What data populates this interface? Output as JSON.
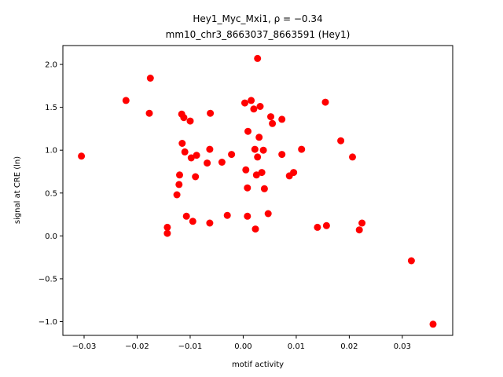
{
  "chart_data": {
    "type": "scatter",
    "title_line1": "Hey1_Myc_Mxi1, ρ = −0.34",
    "title_line2": "mm10_chr3_8663037_8663591 (Hey1)",
    "xlabel": "motif activity",
    "ylabel": "signal at CRE (ln)",
    "xlim": [
      -0.034,
      0.0395
    ],
    "ylim": [
      -1.16,
      2.22
    ],
    "xticks": [
      -0.03,
      -0.02,
      -0.01,
      0.0,
      0.01,
      0.02,
      0.03
    ],
    "xtick_labels": [
      "−0.03",
      "−0.02",
      "−0.01",
      "0.00",
      "0.01",
      "0.02",
      "0.03"
    ],
    "yticks": [
      -1.0,
      -0.5,
      0.0,
      0.5,
      1.0,
      1.5,
      2.0
    ],
    "ytick_labels": [
      "−1.0",
      "−0.5",
      "0.0",
      "0.5",
      "1.0",
      "1.5",
      "2.0"
    ],
    "marker_color": "#ff0000",
    "points": [
      [
        -0.0305,
        0.93
      ],
      [
        -0.0221,
        1.58
      ],
      [
        -0.0175,
        1.84
      ],
      [
        -0.0177,
        1.43
      ],
      [
        -0.0143,
        0.1
      ],
      [
        -0.0143,
        0.03
      ],
      [
        -0.0125,
        0.48
      ],
      [
        -0.0121,
        0.6
      ],
      [
        -0.012,
        0.71
      ],
      [
        -0.0116,
        1.42
      ],
      [
        -0.0112,
        1.38
      ],
      [
        -0.0115,
        1.08
      ],
      [
        -0.011,
        0.98
      ],
      [
        -0.0107,
        0.23
      ],
      [
        -0.01,
        1.34
      ],
      [
        -0.0098,
        0.91
      ],
      [
        -0.0095,
        0.17
      ],
      [
        -0.009,
        0.69
      ],
      [
        -0.0088,
        0.94
      ],
      [
        -0.0068,
        0.85
      ],
      [
        -0.0063,
        1.01
      ],
      [
        -0.0062,
        1.43
      ],
      [
        -0.0063,
        0.15
      ],
      [
        -0.004,
        0.86
      ],
      [
        -0.003,
        0.24
      ],
      [
        -0.0022,
        0.95
      ],
      [
        0.0003,
        1.55
      ],
      [
        0.0005,
        0.77
      ],
      [
        0.0008,
        0.56
      ],
      [
        0.0009,
        1.22
      ],
      [
        0.0008,
        0.23
      ],
      [
        0.0015,
        1.58
      ],
      [
        0.002,
        1.48
      ],
      [
        0.0022,
        1.01
      ],
      [
        0.0023,
        0.08
      ],
      [
        0.0025,
        0.71
      ],
      [
        0.0027,
        2.07
      ],
      [
        0.0027,
        0.92
      ],
      [
        0.003,
        1.15
      ],
      [
        0.0032,
        1.51
      ],
      [
        0.0035,
        0.74
      ],
      [
        0.0038,
        1.0
      ],
      [
        0.004,
        0.55
      ],
      [
        0.0047,
        0.26
      ],
      [
        0.0052,
        1.39
      ],
      [
        0.0055,
        1.31
      ],
      [
        0.0073,
        1.36
      ],
      [
        0.0073,
        0.95
      ],
      [
        0.0087,
        0.7
      ],
      [
        0.0095,
        0.74
      ],
      [
        0.011,
        1.01
      ],
      [
        0.014,
        0.1
      ],
      [
        0.0155,
        1.56
      ],
      [
        0.0157,
        0.12
      ],
      [
        0.0184,
        1.11
      ],
      [
        0.0206,
        0.92
      ],
      [
        0.0219,
        0.07
      ],
      [
        0.0224,
        0.15
      ],
      [
        0.0317,
        -0.29
      ],
      [
        0.0358,
        -1.03
      ]
    ]
  }
}
